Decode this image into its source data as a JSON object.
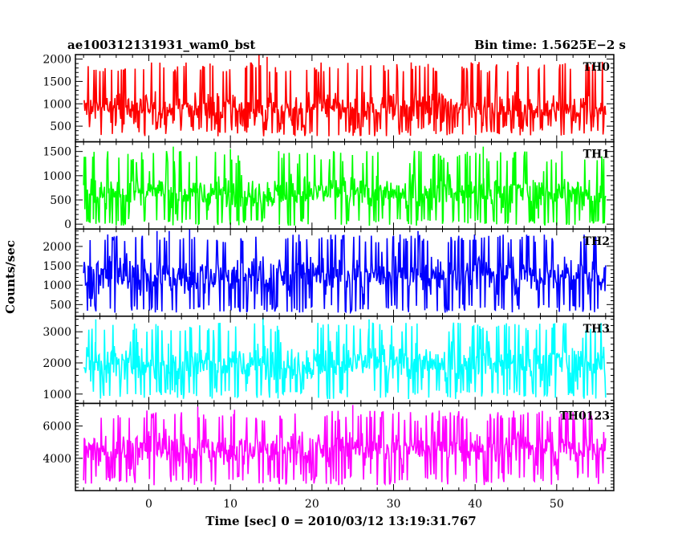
{
  "header": {
    "left_title": "ae100312131931_wam0_bst",
    "right_title": "Bin time: 1.5625E−2 s"
  },
  "chart_data": {
    "type": "line",
    "x_axis": {
      "label": "Time [sec] 0 = 2010/03/12 13:19:31.767",
      "range": [
        -9,
        57
      ],
      "ticks": [
        0,
        10,
        20,
        30,
        40,
        50
      ],
      "tick_labels": [
        "0",
        "10",
        "20",
        "30",
        "40",
        "50"
      ],
      "minor_step": 2
    },
    "y_axis_label": "Counts/sec",
    "data_x_range": [
      -8,
      56
    ],
    "panels": [
      {
        "name": "TH0",
        "color": "#ff0000",
        "ylim": [
          150,
          2100
        ],
        "ticks": [
          500,
          1000,
          1500,
          2000
        ],
        "tick_labels": [
          "500",
          "1000",
          "1500",
          "2000"
        ],
        "minor_step": 100,
        "mean": 900,
        "noise": 230,
        "min_clip": 550,
        "max_clip": 1700,
        "spikes": [
          [
            7.5,
            1900
          ],
          [
            12.0,
            1850
          ],
          [
            13.5,
            2100
          ],
          [
            14.5,
            2050
          ]
        ]
      },
      {
        "name": "TH1",
        "color": "#00ff00",
        "ylim": [
          -100,
          1700
        ],
        "ticks": [
          0,
          500,
          1000,
          1500
        ],
        "tick_labels": [
          "0",
          "500",
          "1000",
          "1500"
        ],
        "minor_step": 100,
        "mean": 650,
        "noise": 230,
        "min_clip": 120,
        "max_clip": 1250,
        "spikes": [
          [
            3.0,
            1600
          ],
          [
            10.0,
            1550
          ],
          [
            41.0,
            1600
          ]
        ]
      },
      {
        "name": "TH2",
        "color": "#0000ff",
        "ylim": [
          200,
          2450
        ],
        "ticks": [
          500,
          1000,
          1500,
          2000
        ],
        "tick_labels": [
          "500",
          "1000",
          "1500",
          "2000"
        ],
        "minor_step": 100,
        "mean": 1250,
        "noise": 320,
        "min_clip": 500,
        "max_clip": 2100,
        "spikes": [
          [
            1.0,
            2400
          ],
          [
            2.5,
            2400
          ],
          [
            5.0,
            2450
          ],
          [
            33.0,
            2400
          ]
        ]
      },
      {
        "name": "TH3",
        "color": "#00ffff",
        "ylim": [
          700,
          3500
        ],
        "ticks": [
          1000,
          2000,
          3000
        ],
        "tick_labels": [
          "1000",
          "2000",
          "3000"
        ],
        "minor_step": 200,
        "mean": 2000,
        "noise": 420,
        "min_clip": 1150,
        "max_clip": 3000,
        "spikes": [
          [
            -6.5,
            3400
          ],
          [
            14.0,
            3450
          ],
          [
            27.0,
            3400
          ]
        ]
      },
      {
        "name": "TH0123",
        "color": "#ff00ff",
        "ylim": [
          2000,
          7400
        ],
        "ticks": [
          4000,
          6000
        ],
        "tick_labels": [
          "4000",
          "6000"
        ],
        "minor_step": 200,
        "mean": 4600,
        "noise": 680,
        "min_clip": 3100,
        "max_clip": 6300,
        "spikes": [
          [
            6.0,
            7200
          ],
          [
            10.5,
            7000
          ],
          [
            25.0,
            7300
          ],
          [
            54.0,
            6900
          ]
        ]
      }
    ]
  }
}
